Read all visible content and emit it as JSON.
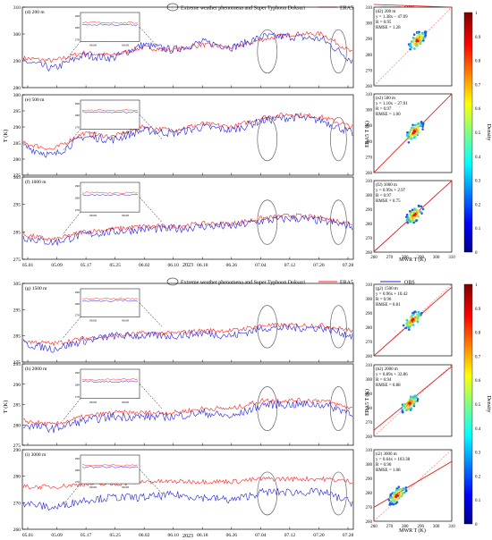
{
  "legend": {
    "circle_label": "Extreme weather phenomena and Super Typhoon Doksuri",
    "era5_label": "ERA5",
    "obs_label": "OBS",
    "era5_color": "#ff2020",
    "obs_color": "#2020e0"
  },
  "x_ticks": [
    "05.01",
    "05.09",
    "05.17",
    "05.25",
    "06.02",
    "06.10",
    "06.18",
    "06.26",
    "07.04",
    "07.12",
    "07.20",
    "07.28"
  ],
  "x_year": "2023",
  "ylabel": "T (K)",
  "scatter_xlabel": "MWR T (K)",
  "scatter_ylabel": "ERA5 T (K)",
  "colorbar_label": "Density",
  "colorbar_ticks": [
    "0",
    "0.1",
    "0.2",
    "0.3",
    "0.4",
    "0.5",
    "0.6",
    "0.7",
    "0.8",
    "0.9",
    "1"
  ],
  "scatter_ticks": [
    "260",
    "270",
    "280",
    "290",
    "300",
    "310"
  ],
  "chart_data": [
    {
      "type": "line",
      "panel": "d",
      "title": "(d) 200 m",
      "ylim": [
        280,
        310
      ],
      "yticks": [
        "280",
        "290",
        "300",
        "310"
      ],
      "series": [
        {
          "name": "ERA5",
          "values": [
            291,
            290,
            293,
            292,
            295,
            294,
            296,
            295,
            298,
            300,
            300,
            293
          ]
        },
        {
          "name": "OBS",
          "values": [
            290,
            287,
            292,
            291,
            296,
            294,
            297,
            295,
            299,
            299,
            298,
            290
          ]
        }
      ],
      "circles": [
        0.74,
        0.955
      ],
      "inset": {
        "ticks": [
          "290",
          "280",
          "270"
        ],
        "xticks": [
          "06.06",
          "06.08"
        ]
      }
    },
    {
      "type": "line",
      "panel": "e",
      "title": "(e) 500 m",
      "ylim": [
        275,
        300
      ],
      "yticks": [
        "275",
        "280",
        "285",
        "290",
        "295",
        "300"
      ],
      "series": [
        {
          "name": "ERA5",
          "values": [
            285,
            283,
            288,
            287,
            290,
            289,
            291,
            290,
            293,
            294,
            293,
            290
          ]
        },
        {
          "name": "OBS",
          "values": [
            284,
            281,
            287,
            286,
            289,
            288,
            290,
            289,
            292,
            293,
            292,
            288
          ]
        }
      ],
      "circles": [
        0.74,
        0.955
      ],
      "inset": {
        "ticks": [
          "290",
          "280",
          "270"
        ],
        "xticks": [
          "06.06",
          "06.08"
        ]
      }
    },
    {
      "type": "line",
      "panel": "f",
      "title": "(f) 1000 m",
      "ylim": [
        275,
        305
      ],
      "yticks": [
        "275",
        "285",
        "295",
        "305"
      ],
      "series": [
        {
          "name": "ERA5",
          "values": [
            284,
            282,
            285,
            286,
            287,
            287,
            288,
            288,
            290,
            291,
            290,
            288
          ]
        },
        {
          "name": "OBS",
          "values": [
            283,
            281,
            284,
            285,
            286,
            286,
            287,
            287,
            289,
            290,
            289,
            287
          ]
        }
      ],
      "circles": [
        0.74,
        0.955
      ],
      "inset": {
        "ticks": [
          "290",
          "280",
          "270"
        ],
        "xticks": [
          "06.06",
          "06.08"
        ]
      }
    },
    {
      "type": "line",
      "panel": "g",
      "title": "(g) 1500 m",
      "ylim": [
        275,
        305
      ],
      "yticks": [
        "275",
        "285",
        "295",
        "305"
      ],
      "series": [
        {
          "name": "ERA5",
          "values": [
            283,
            282,
            284,
            285,
            286,
            286,
            287,
            287,
            289,
            289,
            289,
            287
          ]
        },
        {
          "name": "OBS",
          "values": [
            282,
            280,
            283,
            285,
            285,
            285,
            286,
            285,
            288,
            288,
            288,
            285
          ]
        }
      ],
      "circles": [
        0.74,
        0.955
      ],
      "inset": {
        "ticks": [
          "290",
          "280",
          "270"
        ],
        "xticks": [
          "06.06",
          "06.08"
        ]
      }
    },
    {
      "type": "line",
      "panel": "h",
      "title": "(h) 2000 m",
      "ylim": [
        275,
        295
      ],
      "yticks": [
        "275",
        "280",
        "285",
        "290",
        "295"
      ],
      "series": [
        {
          "name": "ERA5",
          "values": [
            281,
            280,
            282,
            283,
            283,
            283,
            284,
            284,
            286,
            286,
            286,
            284
          ]
        },
        {
          "name": "OBS",
          "values": [
            280,
            279,
            281,
            282,
            282,
            282,
            283,
            282,
            285,
            285,
            285,
            283
          ]
        }
      ],
      "circles": [
        0.74,
        0.955
      ],
      "inset": {
        "ticks": [
          "290",
          "280",
          "270"
        ],
        "xticks": [
          "06.06",
          "06.08"
        ]
      }
    },
    {
      "type": "line",
      "panel": "i",
      "title": "(i) 3000 m",
      "ylim": [
        260,
        290
      ],
      "yticks": [
        "260",
        "270",
        "280",
        "290"
      ],
      "series": [
        {
          "name": "ERA5",
          "values": [
            276,
            276,
            277,
            277,
            278,
            278,
            278,
            278,
            279,
            279,
            279,
            278
          ]
        },
        {
          "name": "OBS",
          "values": [
            270,
            268,
            271,
            272,
            272,
            273,
            272,
            271,
            274,
            274,
            274,
            270
          ]
        }
      ],
      "circles": [
        0.74,
        0.955
      ],
      "inset": {
        "ticks": [
          "290",
          "280",
          "270"
        ],
        "xticks": [
          "06.06",
          "06.08"
        ]
      }
    },
    {
      "type": "scatter",
      "panel": "d2",
      "title": "(d2) 200 m",
      "eq": "y = 1.38x − 47.09",
      "r": "R = 0.95",
      "rmse": "RMSE = 1.28",
      "slope": 1.38,
      "intercept": -47.09,
      "center": [
        288,
        289
      ]
    },
    {
      "type": "scatter",
      "panel": "e2",
      "title": "(e2) 500 m",
      "eq": "y = 1.10x − 27.91",
      "r": "R = 0.97",
      "rmse": "RMSE = 1.00",
      "slope": 1.1,
      "intercept": -27.91,
      "center": [
        286,
        286
      ]
    },
    {
      "type": "scatter",
      "panel": "f2",
      "title": "(f2) 1000 m",
      "eq": "y = 0.99x + 2.97",
      "r": "R = 0.97",
      "rmse": "RMSE = 0.75",
      "slope": 0.99,
      "intercept": 2.97,
      "center": [
        286,
        286
      ]
    },
    {
      "type": "scatter",
      "panel": "g2",
      "title": "(g2) 1500 m",
      "eq": "y = 0.96x + 10.42",
      "r": "R = 0.96",
      "rmse": "RMSE = 0.81",
      "slope": 0.96,
      "intercept": 10.42,
      "center": [
        285,
        285
      ]
    },
    {
      "type": "scatter",
      "panel": "h2",
      "title": "(h2) 2000 m",
      "eq": "y = 0.89x + 32.86",
      "r": "R = 0.94",
      "rmse": "RMSE = 0.88",
      "slope": 0.89,
      "intercept": 32.86,
      "center": [
        283,
        283
      ]
    },
    {
      "type": "scatter",
      "panel": "i2",
      "title": "(i2) 3000 m",
      "eq": "y = 0.64x + 103.38",
      "r": "R = 0.90",
      "rmse": "RMSE = 1.08",
      "slope": 0.64,
      "intercept": 103.38,
      "center": [
        275,
        278
      ]
    }
  ]
}
